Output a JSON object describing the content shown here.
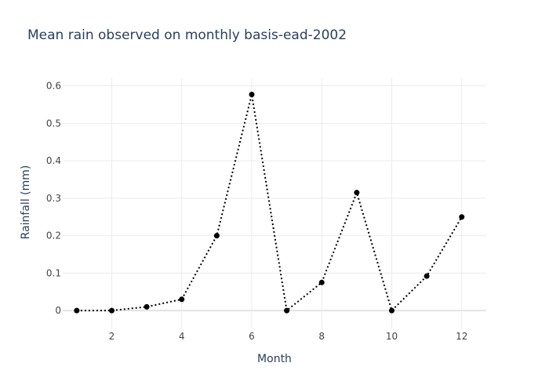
{
  "chart_data": {
    "type": "line",
    "title": "Mean rain observed on monthly basis-ead-2002",
    "xlabel": "Month",
    "ylabel": "Rainfall (mm)",
    "xlim": [
      0.6,
      12.7
    ],
    "ylim": [
      -0.05,
      0.62
    ],
    "xticks": [
      2,
      4,
      6,
      8,
      10,
      12
    ],
    "yticks": [
      0,
      0.1,
      0.2,
      0.3,
      0.4,
      0.5,
      0.6
    ],
    "grid": true,
    "legend": "none",
    "series": [
      {
        "line_color": "#000000",
        "line_style": "dotted",
        "marker": "circle",
        "x": [
          1,
          2,
          3,
          4,
          5,
          6,
          7,
          8,
          9,
          10,
          11,
          12
        ],
        "y": [
          0,
          0,
          0.01,
          0.03,
          0.2,
          0.577,
          0,
          0.075,
          0.315,
          0,
          0.092,
          0.25
        ]
      }
    ]
  }
}
